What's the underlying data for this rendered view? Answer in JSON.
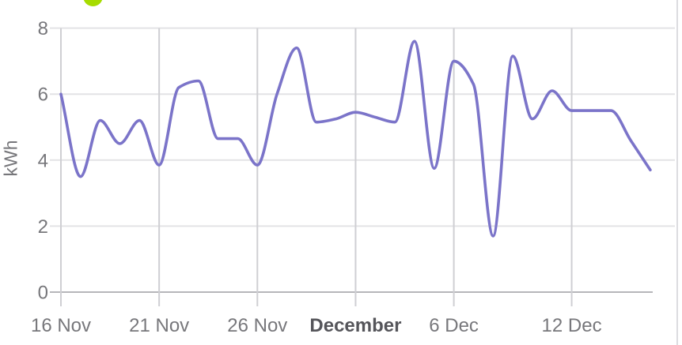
{
  "header": {
    "legend_dot_color": "#a6dc00"
  },
  "panel": {
    "divider_color": "#dcdce0"
  },
  "chart_data": {
    "type": "line",
    "title": "",
    "xlabel": "",
    "ylabel": "kWh",
    "ylim": [
      0,
      8
    ],
    "yticks": [
      0,
      2,
      4,
      6,
      8
    ],
    "grid": true,
    "legend_position": "top (clipped out of view)",
    "line_color": "#7b74c9",
    "x": [
      "16 Nov",
      "17 Nov",
      "18 Nov",
      "19 Nov",
      "20 Nov",
      "21 Nov",
      "22 Nov",
      "23 Nov",
      "24 Nov",
      "25 Nov",
      "26 Nov",
      "27 Nov",
      "28 Nov",
      "29 Nov",
      "30 Nov",
      "1 Dec",
      "2 Dec",
      "3 Dec",
      "4 Dec",
      "5 Dec",
      "6 Dec",
      "7 Dec",
      "8 Dec",
      "9 Dec",
      "10 Dec",
      "11 Dec",
      "12 Dec",
      "13 Dec",
      "14 Dec",
      "15 Dec",
      "16 Dec"
    ],
    "values": [
      6.0,
      3.5,
      5.2,
      4.5,
      5.2,
      3.85,
      6.2,
      6.4,
      4.65,
      4.65,
      3.85,
      6.0,
      7.4,
      5.15,
      5.25,
      5.45,
      5.3,
      5.15,
      7.6,
      3.75,
      7.0,
      6.3,
      1.7,
      7.15,
      5.25,
      6.1,
      5.5,
      5.5,
      5.5,
      4.6,
      3.7
    ],
    "xtick_labels": [
      {
        "label": "16 Nov",
        "index": 0,
        "bold": false
      },
      {
        "label": "21 Nov",
        "index": 5,
        "bold": false
      },
      {
        "label": "26 Nov",
        "index": 10,
        "bold": false
      },
      {
        "label": "December",
        "index": 15,
        "bold": true
      },
      {
        "label": "6 Dec",
        "index": 20,
        "bold": false
      },
      {
        "label": "12 Dec",
        "index": 26,
        "bold": false
      }
    ]
  }
}
